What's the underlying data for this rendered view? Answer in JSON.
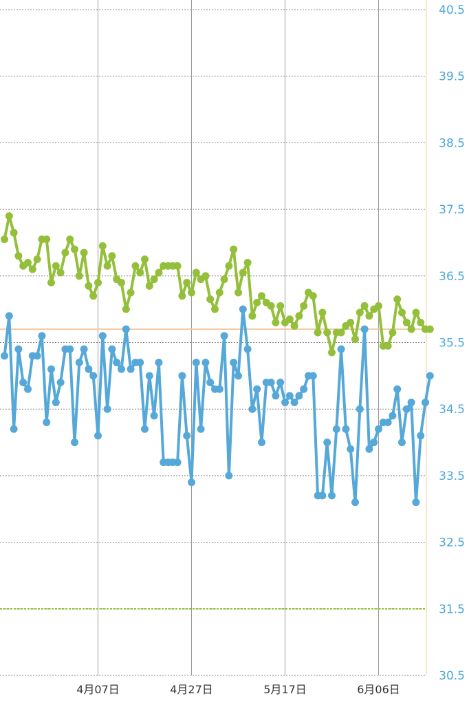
{
  "chart_data": {
    "type": "line",
    "title": "",
    "xlabel": "",
    "ylabel": "",
    "ylim": [
      30.5,
      40.5
    ],
    "y_ticks": [
      "40.5",
      "39.5",
      "38.5",
      "37.5",
      "36.5",
      "35.5",
      "34.5",
      "33.5",
      "32.5",
      "31.5",
      "30.5"
    ],
    "x_ticks": [
      {
        "label": "4月07日",
        "x": 20
      },
      {
        "label": "4月27日",
        "x": 40
      },
      {
        "label": "5月17日",
        "x": 60
      },
      {
        "label": "6月06日",
        "x": 80
      }
    ],
    "y_axis_position": "right",
    "grid": true,
    "reference_lines": [
      {
        "y": 35.7,
        "color": "#f5c9a0",
        "style": "solid"
      },
      {
        "y": 31.5,
        "color": "#9ac33a",
        "style": "dashed"
      }
    ],
    "series": [
      {
        "color": "#93bf3a",
        "x": [
          0,
          1,
          2,
          3,
          4,
          5,
          6,
          7,
          8,
          9,
          10,
          11,
          12,
          13,
          14,
          15,
          16,
          17,
          18,
          19,
          20,
          21,
          22,
          23,
          24,
          25,
          26,
          27,
          28,
          29,
          30,
          31,
          32,
          33,
          34,
          35,
          36,
          37,
          38,
          39,
          40,
          41,
          42,
          43,
          44,
          45,
          46,
          47,
          48,
          49,
          50,
          51,
          52,
          53,
          54,
          55,
          56,
          57,
          58,
          59,
          60,
          61,
          62,
          63,
          64,
          65,
          66,
          67,
          68,
          69,
          70,
          71,
          72,
          73,
          74,
          75,
          76,
          77,
          78,
          79,
          80,
          81,
          82,
          83,
          84,
          85,
          86,
          87,
          88,
          89,
          90,
          91
        ],
        "y": [
          37.05,
          37.4,
          37.15,
          36.8,
          36.65,
          36.7,
          36.6,
          36.75,
          37.05,
          37.05,
          36.4,
          36.65,
          36.55,
          36.85,
          37.05,
          36.9,
          36.5,
          36.85,
          36.35,
          36.2,
          36.4,
          36.95,
          36.65,
          36.8,
          36.45,
          36.4,
          36.0,
          36.25,
          36.65,
          36.55,
          36.75,
          36.35,
          36.45,
          36.55,
          36.65,
          36.65,
          36.65,
          36.65,
          36.2,
          36.4,
          36.25,
          36.55,
          36.45,
          36.5,
          36.15,
          36.0,
          36.25,
          36.45,
          36.65,
          36.9,
          36.25,
          36.55,
          36.7,
          35.9,
          36.1,
          36.2,
          36.1,
          36.05,
          35.8,
          36.05,
          35.8,
          35.85,
          35.75,
          35.9,
          36.05,
          36.25,
          36.2,
          35.65,
          35.95,
          35.65,
          35.35,
          35.65,
          35.65,
          35.75,
          35.8,
          35.55,
          35.95,
          36.05,
          35.9,
          36.0,
          36.05,
          35.45,
          35.45,
          35.65,
          36.15,
          35.95,
          35.8,
          35.7,
          35.95,
          35.8,
          35.7,
          35.7
        ]
      },
      {
        "color": "#55a8d8",
        "x": [
          0,
          1,
          2,
          3,
          4,
          5,
          6,
          7,
          8,
          9,
          10,
          11,
          12,
          13,
          14,
          15,
          16,
          17,
          18,
          19,
          20,
          21,
          22,
          23,
          24,
          25,
          26,
          27,
          28,
          29,
          30,
          31,
          32,
          33,
          34,
          35,
          36,
          37,
          38,
          39,
          40,
          41,
          42,
          43,
          44,
          45,
          46,
          47,
          48,
          49,
          50,
          51,
          52,
          53,
          54,
          55,
          56,
          57,
          58,
          59,
          60,
          61,
          62,
          63,
          64,
          65,
          66,
          67,
          68,
          69,
          70,
          71,
          72,
          73,
          74,
          75,
          76,
          77,
          78,
          79,
          80,
          81,
          82,
          83,
          84,
          85,
          86,
          87,
          88,
          89,
          90,
          91
        ],
        "y": [
          35.3,
          35.9,
          34.2,
          35.4,
          34.9,
          34.8,
          35.3,
          35.3,
          35.6,
          34.3,
          35.1,
          34.6,
          34.9,
          35.4,
          35.4,
          34.0,
          35.2,
          35.4,
          35.1,
          35.0,
          34.1,
          35.6,
          34.5,
          35.4,
          35.2,
          35.1,
          35.7,
          35.1,
          35.2,
          35.2,
          34.2,
          35.0,
          34.4,
          35.2,
          33.7,
          33.7,
          33.7,
          33.7,
          35.0,
          34.1,
          33.4,
          35.2,
          34.2,
          35.2,
          34.9,
          34.8,
          34.8,
          35.6,
          33.5,
          35.2,
          35.0,
          36.0,
          35.4,
          34.5,
          34.8,
          34.0,
          34.9,
          34.9,
          34.7,
          34.9,
          34.6,
          34.7,
          34.6,
          34.7,
          34.8,
          35.0,
          35.0,
          33.2,
          33.2,
          34.0,
          33.2,
          34.2,
          35.4,
          34.2,
          33.9,
          33.1,
          34.5,
          35.7,
          33.9,
          34.0,
          34.2,
          34.3,
          34.3,
          34.4,
          34.8,
          34.0,
          34.5,
          34.6,
          33.1,
          34.1,
          34.6,
          35.0
        ]
      }
    ]
  }
}
